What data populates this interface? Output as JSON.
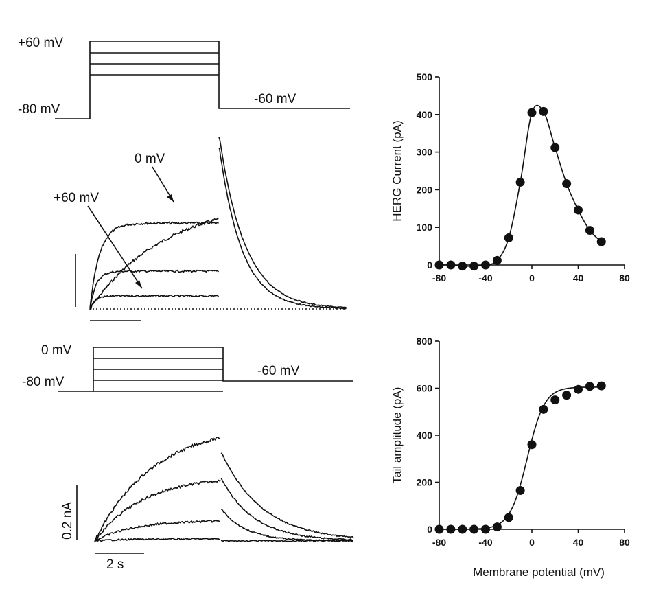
{
  "panels": {
    "protocol_top": {
      "hold_label": "-80 mV",
      "step_label": "+60 mV",
      "tail_label": "-60 mV",
      "steps": 4
    },
    "traces_top": {
      "annotation_0mv": "0 mV",
      "annotation_60mv": "+60 mV"
    },
    "protocol_bottom": {
      "hold_label": "-80 mV",
      "step_label": "0 mV",
      "tail_label": "-60 mV",
      "steps": 4
    },
    "traces_bottom": {
      "scale_current": "0.2 nA",
      "scale_time": "2 s"
    }
  },
  "chart_data": [
    {
      "type": "scatter",
      "title": "",
      "xlabel": "",
      "ylabel": "HERG Current (pA)",
      "xlim": [
        -80,
        80
      ],
      "ylim": [
        0,
        500
      ],
      "xticks": [
        "-80",
        "-40",
        "0",
        "40",
        "80"
      ],
      "yticks": [
        "0",
        "100",
        "200",
        "300",
        "400",
        "500"
      ],
      "x": [
        -80,
        -70,
        -60,
        -50,
        -40,
        -30,
        -20,
        -10,
        0,
        10,
        20,
        30,
        40,
        50,
        60
      ],
      "y": [
        0,
        0,
        -3,
        -3,
        0,
        12,
        72,
        220,
        405,
        408,
        312,
        216,
        146,
        92,
        62
      ],
      "fit": "smooth curve through points"
    },
    {
      "type": "scatter",
      "title": "",
      "xlabel": "Membrane potential (mV)",
      "ylabel": "Tail amplitude (pA)",
      "xlim": [
        -80,
        80
      ],
      "ylim": [
        0,
        800
      ],
      "xticks": [
        "-80",
        "-40",
        "0",
        "40",
        "80"
      ],
      "yticks": [
        "0",
        "200",
        "400",
        "600",
        "800"
      ],
      "x": [
        -80,
        -70,
        -60,
        -50,
        -40,
        -30,
        -20,
        -10,
        0,
        10,
        20,
        30,
        40,
        50,
        60
      ],
      "y": [
        0,
        0,
        0,
        0,
        0,
        10,
        50,
        165,
        360,
        510,
        550,
        570,
        595,
        608,
        610
      ],
      "fit": "Boltzmann"
    }
  ]
}
